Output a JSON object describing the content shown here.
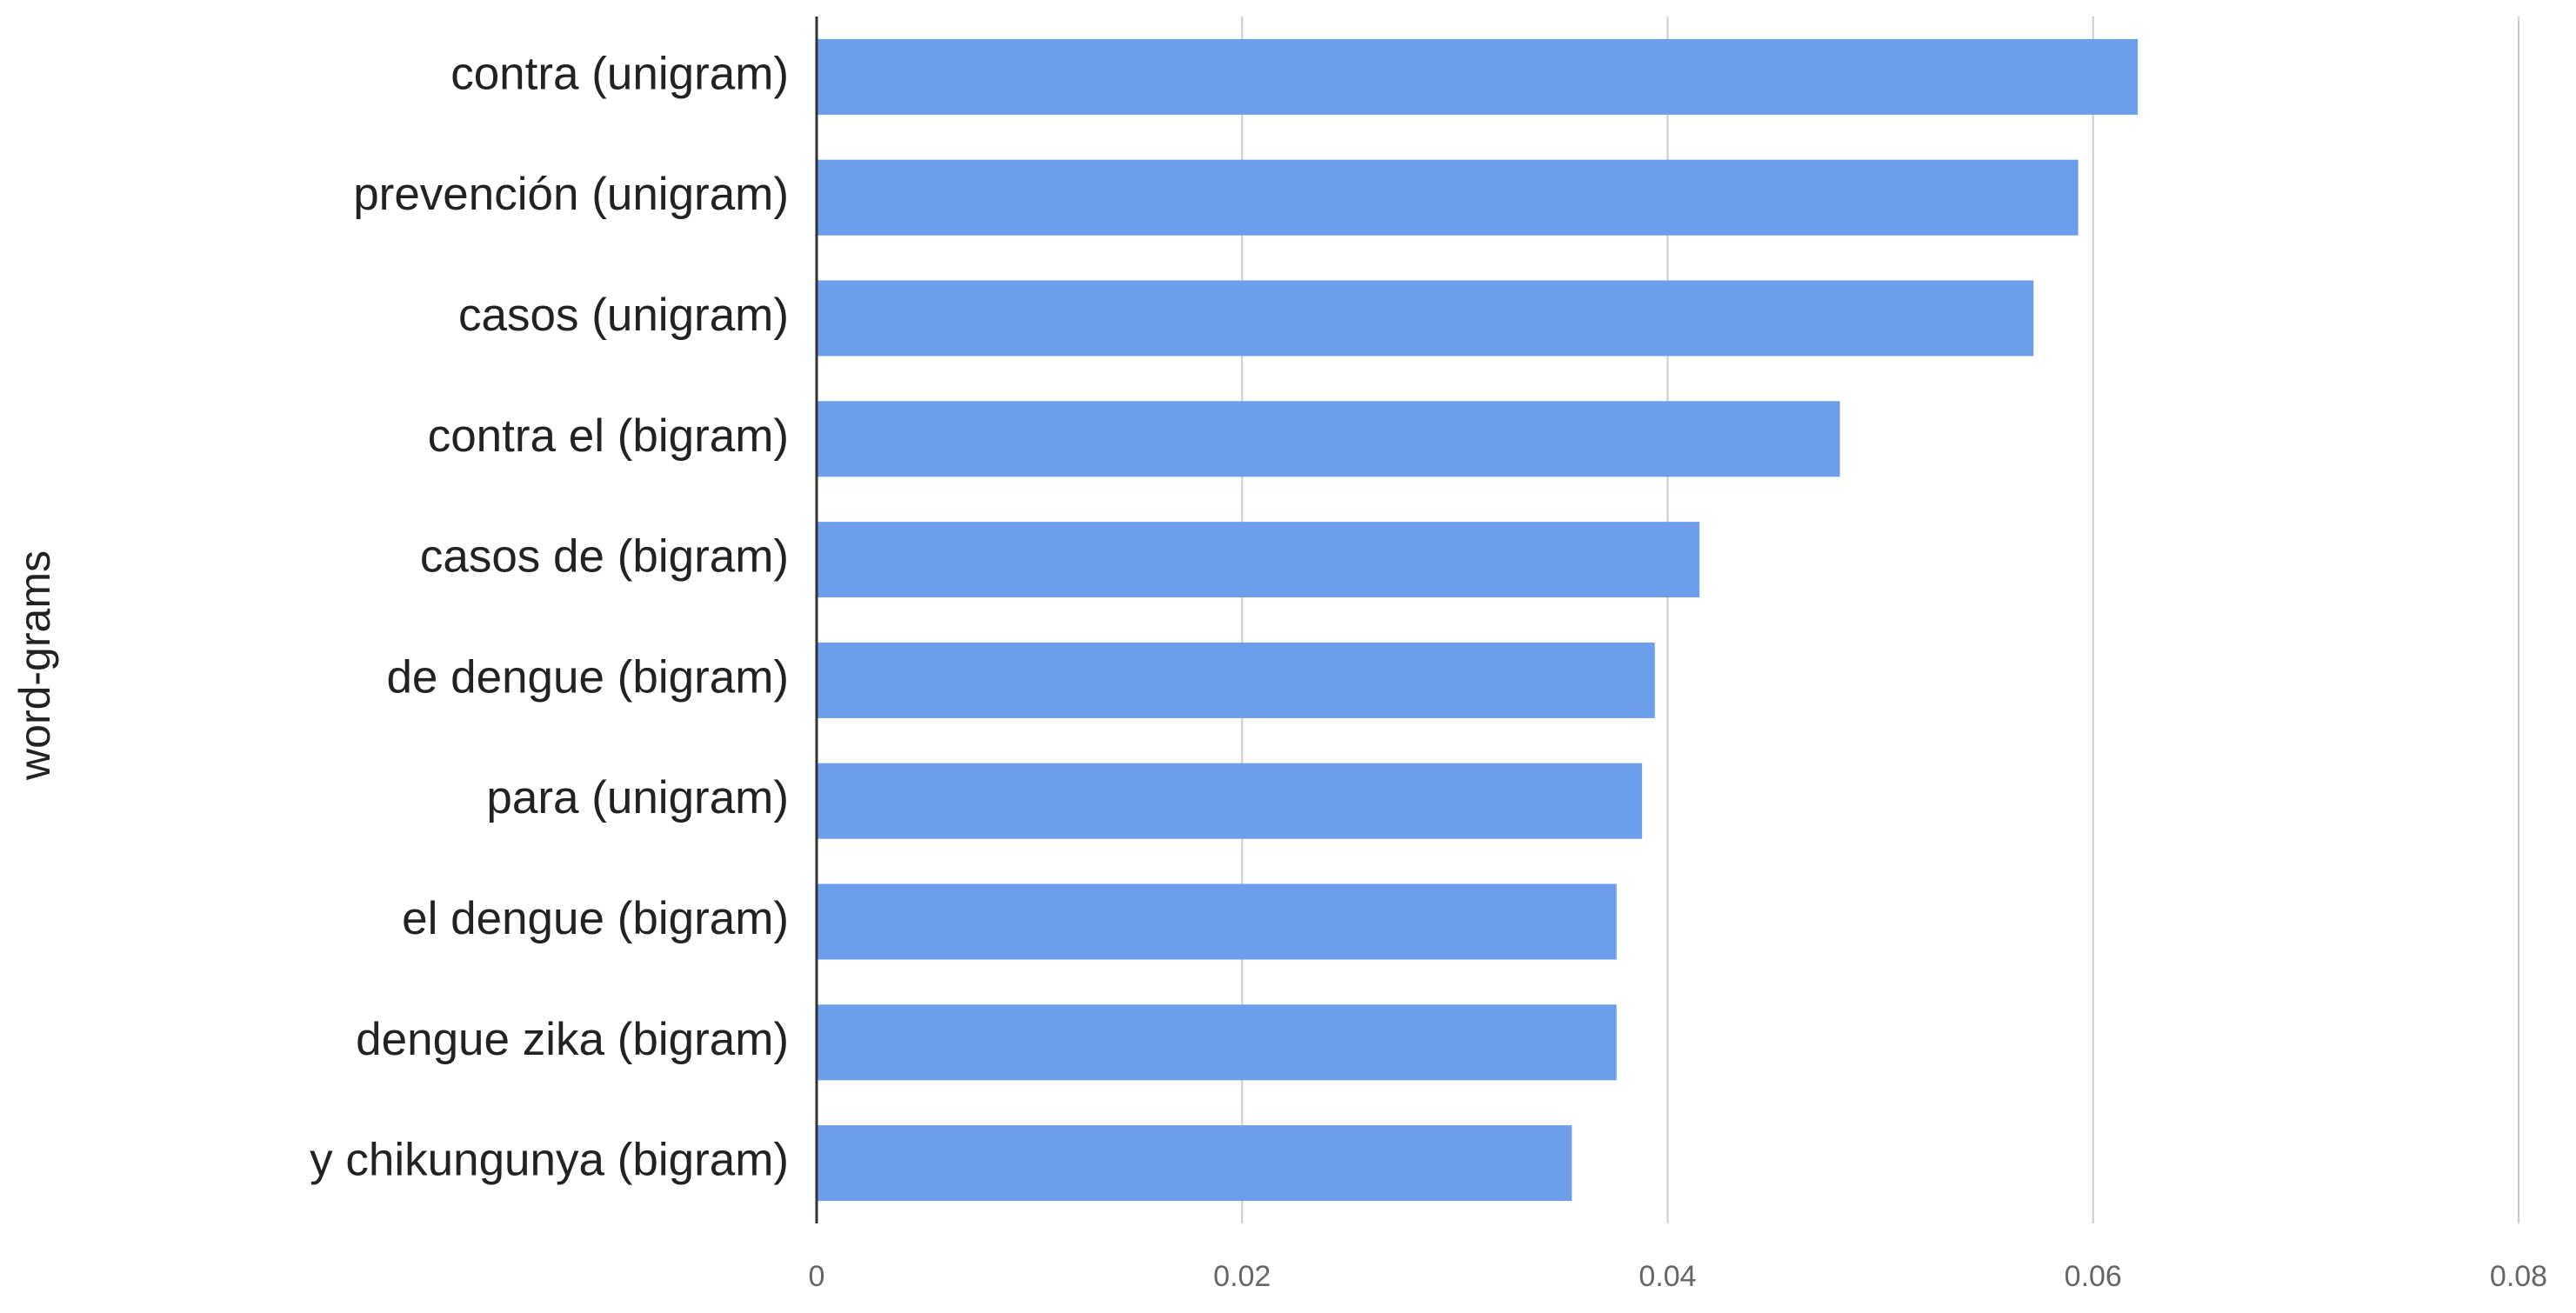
{
  "chart_data": {
    "type": "bar",
    "orientation": "horizontal",
    "y_label": "word-grams",
    "categories": [
      "contra (unigram)",
      "prevención (unigram)",
      "casos (unigram)",
      "contra el (bigram)",
      "casos de (bigram)",
      "de dengue (bigram)",
      "para (unigram)",
      "el dengue (bigram)",
      "dengue zika (bigram)",
      "y chikungunya (bigram)"
    ],
    "values": [
      0.0621,
      0.0593,
      0.0572,
      0.0481,
      0.0415,
      0.0394,
      0.0388,
      0.0376,
      0.0376,
      0.0355
    ],
    "color": "#6d9eeb",
    "xlim": [
      0,
      0.08
    ],
    "xticks": [
      0,
      0.02,
      0.04,
      0.06,
      0.08
    ],
    "grid": true
  }
}
